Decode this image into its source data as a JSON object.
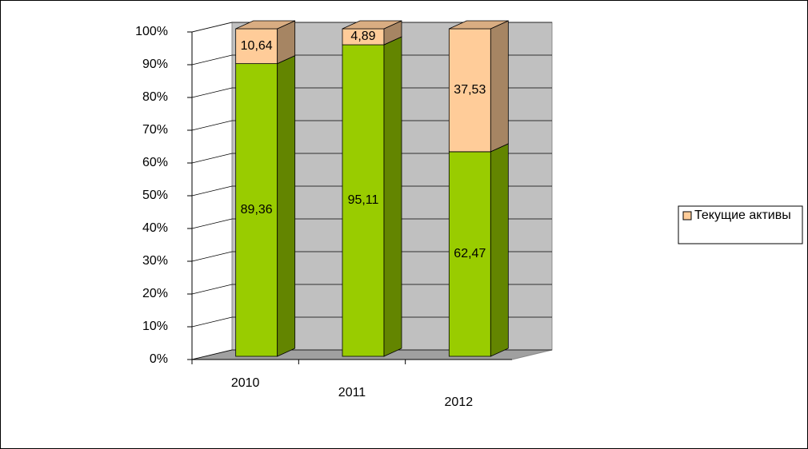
{
  "chart_data": {
    "type": "bar3d-stacked",
    "categories": [
      "2010",
      "2011",
      "2012"
    ],
    "series": [
      {
        "color": "#99cc00",
        "values": [
          89.36,
          95.11,
          62.47
        ],
        "value_labels": [
          "89,36",
          "95,11",
          "62,47"
        ]
      },
      {
        "name": "Текущие активы",
        "color": "#ffcc99",
        "values": [
          10.64,
          4.89,
          37.53
        ],
        "value_labels": [
          "10,64",
          "4,89",
          "37,53"
        ]
      }
    ],
    "ylim": [
      0,
      100
    ],
    "yticks": [
      {
        "value": 0,
        "label": "0%"
      },
      {
        "value": 10,
        "label": "10%"
      },
      {
        "value": 20,
        "label": "20%"
      },
      {
        "value": 30,
        "label": "30%"
      },
      {
        "value": 40,
        "label": "40%"
      },
      {
        "value": 50,
        "label": "50%"
      },
      {
        "value": 60,
        "label": "60%"
      },
      {
        "value": 70,
        "label": "70%"
      },
      {
        "value": 80,
        "label": "80%"
      },
      {
        "value": 90,
        "label": "90%"
      },
      {
        "value": 100,
        "label": "100%"
      }
    ],
    "grid": true,
    "legend": "right"
  }
}
